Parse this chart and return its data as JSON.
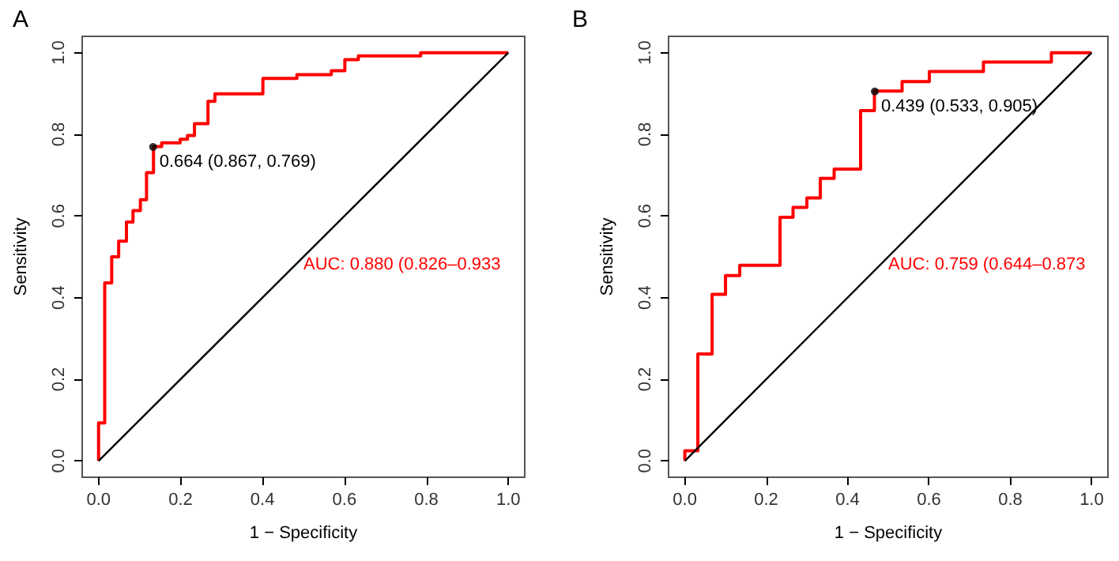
{
  "chart_data": [
    {
      "type": "step",
      "title": "A",
      "xlabel": "1 − Specificity",
      "ylabel": "Sensitivity",
      "xlim": [
        -0.04,
        1.04
      ],
      "ylim": [
        -0.04,
        1.04
      ],
      "xticks": [
        {
          "value": 0,
          "label": "0.0"
        },
        {
          "value": 0.2,
          "label": "0.2"
        },
        {
          "value": 0.4,
          "label": "0.4"
        },
        {
          "value": 0.6,
          "label": "0.6"
        },
        {
          "value": 0.8,
          "label": "0.8"
        },
        {
          "value": 1,
          "label": "1.0"
        }
      ],
      "yticks": [
        {
          "value": 0,
          "label": "0.0"
        },
        {
          "value": 0.2,
          "label": "0.2"
        },
        {
          "value": 0.4,
          "label": "0.4"
        },
        {
          "value": 0.6,
          "label": "0.6"
        },
        {
          "value": 0.8,
          "label": "0.8"
        },
        {
          "value": 1,
          "label": "1.0"
        }
      ],
      "grid": false,
      "series": [
        {
          "color": "#ff0000",
          "x": [
            0,
            0,
            0.015,
            0.032,
            0.049,
            0.068,
            0.084,
            0.102,
            0.117,
            0.134,
            0.154,
            0.199,
            0.217,
            0.234,
            0.267,
            0.284,
            0.401,
            0.484,
            0.568,
            0.601,
            0.634,
            0.786,
            1.0
          ],
          "values": [
            0,
            0.093,
            0.436,
            0.5,
            0.538,
            0.585,
            0.613,
            0.64,
            0.706,
            0.77,
            0.779,
            0.788,
            0.797,
            0.826,
            0.881,
            0.899,
            0.937,
            0.946,
            0.956,
            0.983,
            0.992,
            1.0,
            1.0
          ]
        },
        {
          "type": "line",
          "color": "#000000",
          "x": [
            0,
            1
          ],
          "values": [
            0,
            1
          ]
        },
        {
          "type": "scatter",
          "color": "#000000",
          "x": [
            0.133
          ],
          "values": [
            0.769
          ]
        }
      ],
      "annotations": [
        {
          "text": "0.664 (0.867, 0.769)",
          "x": 0.133,
          "y": 0.769
        },
        "AUC: 0.880 (0.826–0.933"
      ]
    },
    {
      "type": "step",
      "title": "B",
      "xlabel": "1 − Specificity",
      "ylabel": "Sensitivity",
      "xlim": [
        -0.04,
        1.04
      ],
      "ylim": [
        -0.04,
        1.04
      ],
      "xticks": [
        {
          "value": 0,
          "label": "0.0"
        },
        {
          "value": 0.2,
          "label": "0.2"
        },
        {
          "value": 0.4,
          "label": "0.4"
        },
        {
          "value": 0.6,
          "label": "0.6"
        },
        {
          "value": 0.8,
          "label": "0.8"
        },
        {
          "value": 1,
          "label": "1.0"
        }
      ],
      "yticks": [
        {
          "value": 0,
          "label": "0.0"
        },
        {
          "value": 0.2,
          "label": "0.2"
        },
        {
          "value": 0.4,
          "label": "0.4"
        },
        {
          "value": 0.6,
          "label": "0.6"
        },
        {
          "value": 0.8,
          "label": "0.8"
        },
        {
          "value": 1,
          "label": "1.0"
        }
      ],
      "grid": false,
      "series": [
        {
          "color": "#ff0000",
          "x": [
            0,
            0,
            0.032,
            0.067,
            0.1,
            0.135,
            0.234,
            0.266,
            0.3,
            0.333,
            0.367,
            0.432,
            0.466,
            0.534,
            0.601,
            0.734,
            0.901,
            1.0
          ],
          "values": [
            0,
            0.025,
            0.262,
            0.408,
            0.454,
            0.479,
            0.597,
            0.621,
            0.644,
            0.692,
            0.715,
            0.858,
            0.906,
            0.929,
            0.954,
            0.977,
            1.0,
            1.0
          ]
        },
        {
          "type": "line",
          "color": "#000000",
          "x": [
            0,
            1
          ],
          "values": [
            0,
            1
          ]
        },
        {
          "type": "scatter",
          "color": "#000000",
          "x": [
            0.467
          ],
          "values": [
            0.905
          ]
        }
      ],
      "annotations": [
        {
          "text": "0.439 (0.533, 0.905)",
          "x": 0.467,
          "y": 0.905
        },
        "AUC: 0.759 (0.644–0.873"
      ]
    }
  ]
}
